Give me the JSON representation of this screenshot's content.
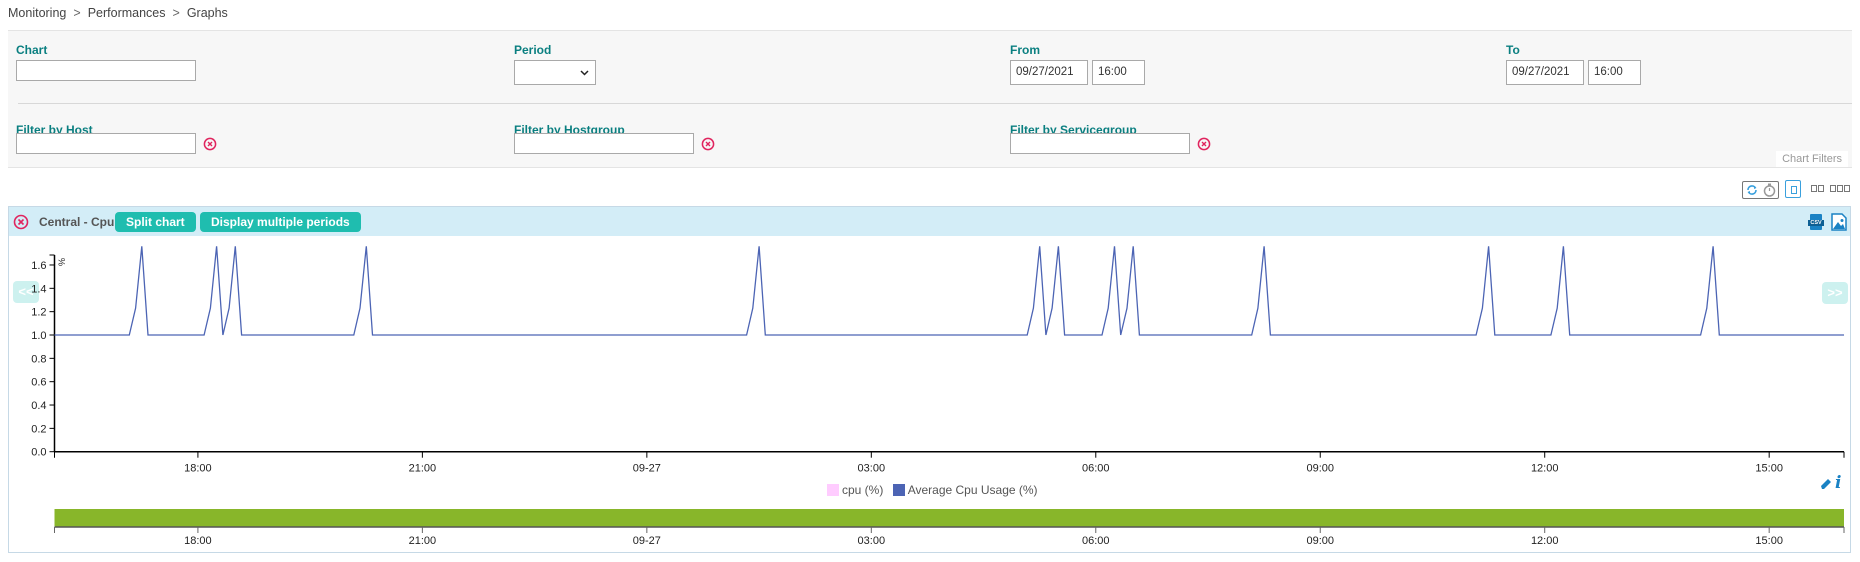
{
  "breadcrumb": [
    "Monitoring",
    "Performances",
    "Graphs"
  ],
  "breadcrumb_separator": ">",
  "filters": {
    "chart": {
      "label": "Chart",
      "value": ""
    },
    "period": {
      "label": "Period",
      "value": ""
    },
    "from": {
      "label": "From",
      "date": "09/27/2021",
      "time": "16:00"
    },
    "to": {
      "label": "To",
      "date": "09/27/2021",
      "time": "16:00"
    },
    "host": {
      "label": "Filter by Host",
      "value": ""
    },
    "hostgroup": {
      "label": "Filter by Hostgroup",
      "value": ""
    },
    "servicegroup": {
      "label": "Filter by Servicegroup",
      "value": ""
    },
    "tab_label": "Chart Filters"
  },
  "toolbar": {
    "icons": [
      "refresh-icon",
      "timer-icon",
      "layout-1-column-icon",
      "layout-2-columns-icon",
      "layout-3-columns-icon"
    ]
  },
  "chart_panel": {
    "title": "Central - Cpu",
    "split_label": "Split chart",
    "multi_period_label": "Display multiple periods",
    "prev_label": "<<",
    "next_label": ">>",
    "csv_label": "CSV",
    "colors": {
      "header": "#d3edf7",
      "button": "#1fbdaf",
      "navigator": "#88b62a",
      "clear_icon": "#e0245e"
    }
  },
  "chart_data": {
    "type": "line",
    "ylabel": "%",
    "ylim": [
      0,
      1.7
    ],
    "yticks": [
      "0.0",
      "0.2",
      "0.4",
      "0.6",
      "0.8",
      "1.0",
      "1.2",
      "1.4",
      "1.6"
    ],
    "x_range": [
      "09-26 16:05",
      "09-27 16:00"
    ],
    "xticks": [
      {
        "label": "18:00",
        "at": "09-26 18:00"
      },
      {
        "label": "21:00",
        "at": "09-26 21:00"
      },
      {
        "label": "09-27",
        "at": "09-27 00:00"
      },
      {
        "label": "03:00",
        "at": "09-27 03:00"
      },
      {
        "label": "06:00",
        "at": "09-27 06:00"
      },
      {
        "label": "09:00",
        "at": "09-27 09:00"
      },
      {
        "label": "12:00",
        "at": "09-27 12:00"
      },
      {
        "label": "15:00",
        "at": "09-27 15:00"
      }
    ],
    "grid": false,
    "legend_position": "bottom",
    "series": [
      {
        "name": "cpu (%)",
        "color": "#ffccff",
        "points": []
      },
      {
        "name": "Average Cpu Usage (%)",
        "color": "#4c64b4",
        "points": [
          [
            "09-26 16:05",
            1.0
          ],
          [
            "09-26 17:05",
            1.0
          ],
          [
            "09-26 17:10",
            1.23
          ],
          [
            "09-26 17:15",
            1.76
          ],
          [
            "09-26 17:20",
            1.0
          ],
          [
            "09-26 18:05",
            1.0
          ],
          [
            "09-26 18:10",
            1.23
          ],
          [
            "09-26 18:15",
            1.76
          ],
          [
            "09-26 18:20",
            1.0
          ],
          [
            "09-26 18:25",
            1.23
          ],
          [
            "09-26 18:30",
            1.76
          ],
          [
            "09-26 18:35",
            1.0
          ],
          [
            "09-26 20:05",
            1.0
          ],
          [
            "09-26 20:10",
            1.23
          ],
          [
            "09-26 20:15",
            1.76
          ],
          [
            "09-26 20:20",
            1.0
          ],
          [
            "09-27 01:20",
            1.0
          ],
          [
            "09-27 01:25",
            1.23
          ],
          [
            "09-27 01:30",
            1.76
          ],
          [
            "09-27 01:35",
            1.0
          ],
          [
            "09-27 05:05",
            1.0
          ],
          [
            "09-27 05:10",
            1.23
          ],
          [
            "09-27 05:15",
            1.76
          ],
          [
            "09-27 05:20",
            1.0
          ],
          [
            "09-27 05:25",
            1.23
          ],
          [
            "09-27 05:30",
            1.76
          ],
          [
            "09-27 05:35",
            1.0
          ],
          [
            "09-27 06:05",
            1.0
          ],
          [
            "09-27 06:10",
            1.23
          ],
          [
            "09-27 06:15",
            1.76
          ],
          [
            "09-27 06:20",
            1.0
          ],
          [
            "09-27 06:25",
            1.23
          ],
          [
            "09-27 06:30",
            1.76
          ],
          [
            "09-27 06:35",
            1.0
          ],
          [
            "09-27 08:05",
            1.0
          ],
          [
            "09-27 08:10",
            1.23
          ],
          [
            "09-27 08:15",
            1.76
          ],
          [
            "09-27 08:20",
            1.0
          ],
          [
            "09-27 11:05",
            1.0
          ],
          [
            "09-27 11:10",
            1.23
          ],
          [
            "09-27 11:15",
            1.76
          ],
          [
            "09-27 11:20",
            1.0
          ],
          [
            "09-27 12:05",
            1.0
          ],
          [
            "09-27 12:10",
            1.23
          ],
          [
            "09-27 12:15",
            1.76
          ],
          [
            "09-27 12:20",
            1.0
          ],
          [
            "09-27 14:05",
            1.0
          ],
          [
            "09-27 14:10",
            1.23
          ],
          [
            "09-27 14:15",
            1.76
          ],
          [
            "09-27 14:20",
            1.0
          ],
          [
            "09-27 16:00",
            1.0
          ]
        ]
      }
    ]
  }
}
